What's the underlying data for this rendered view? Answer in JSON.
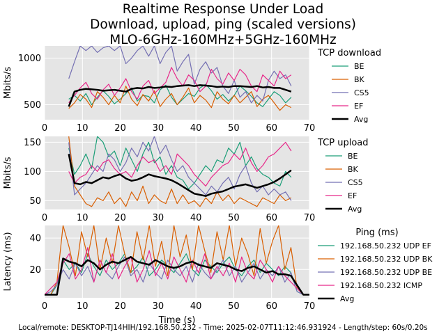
{
  "figure": {
    "title_lines": [
      "Realtime Response Under Load",
      "Download, upload, ping (scaled versions)",
      "MLO-6GHz-160MHz+5GHz-160MHz"
    ],
    "footer": "Local/remote: DESKTOP-TJ14HIH/192.168.50.232 - Time: 2025-02-07T11:12:46.931924 - Length/step: 60s/0.20s"
  },
  "colors": {
    "panel_bg": "#e5e5e5",
    "grid": "#ffffff",
    "BE": "#1b9e77",
    "BK": "#d95f02",
    "CS5": "#7570b3",
    "EF": "#e7298a",
    "Avg": "#000000"
  },
  "chart_data": [
    {
      "type": "line",
      "legend_title": "TCP download",
      "legend_position": "right",
      "grid": true,
      "xlabel": "",
      "ylabel": "Mbits/s",
      "xlim": [
        0,
        70
      ],
      "ylim": [
        340,
        1130
      ],
      "xticks": [
        0,
        10,
        20,
        30,
        40,
        50,
        60,
        70
      ],
      "yticks": [
        500,
        1000
      ],
      "x_start": 6.4,
      "x_end": 65.2,
      "series": [
        {
          "name": "BE",
          "color": "#1b9e77",
          "values": [
            560,
            600,
            540,
            620,
            500,
            580,
            650,
            590,
            510,
            560,
            620,
            680,
            540,
            600,
            590,
            520,
            660,
            710,
            580,
            500,
            560,
            620,
            590,
            680,
            720,
            650,
            560,
            610,
            540,
            600,
            700,
            650,
            590,
            520,
            480,
            560,
            640,
            600,
            520,
            580
          ]
        },
        {
          "name": "BK",
          "color": "#d95f02",
          "values": [
            460,
            520,
            610,
            560,
            470,
            640,
            580,
            500,
            600,
            520,
            700,
            560,
            490,
            610,
            540,
            650,
            480,
            560,
            620,
            500,
            580,
            680,
            520,
            600,
            550,
            470,
            640,
            560,
            510,
            600,
            520,
            580,
            640,
            480,
            560,
            600,
            520,
            440,
            500,
            470
          ]
        },
        {
          "name": "CS5",
          "color": "#7570b3",
          "values": [
            780,
            960,
            1130,
            1080,
            1130,
            1060,
            1110,
            1130,
            1080,
            1130,
            940,
            1000,
            1080,
            1130,
            1020,
            1130,
            940,
            1060,
            1130,
            860,
            960,
            1040,
            720,
            880,
            960,
            840,
            900,
            700,
            620,
            760,
            580,
            640,
            520,
            600,
            540,
            760,
            860,
            780,
            820,
            700
          ]
        },
        {
          "name": "EF",
          "color": "#e7298a",
          "values": [
            520,
            600,
            680,
            740,
            620,
            560,
            660,
            720,
            600,
            680,
            780,
            640,
            560,
            700,
            760,
            620,
            680,
            740,
            900,
            780,
            700,
            820,
            760,
            640,
            700,
            880,
            780,
            720,
            840,
            760,
            880,
            820,
            700,
            640,
            820,
            760,
            700,
            860,
            780,
            820
          ]
        },
        {
          "name": "Avg",
          "color": "#000000",
          "values": [
            480,
            640,
            660,
            670,
            665,
            660,
            650,
            655,
            660,
            650,
            640,
            670,
            680,
            675,
            690,
            680,
            685,
            695,
            690,
            700,
            705,
            710,
            700,
            710,
            705,
            700,
            690,
            695,
            690,
            700,
            700,
            695,
            690,
            700,
            685,
            690,
            680,
            680,
            660,
            640
          ]
        }
      ]
    },
    {
      "type": "line",
      "legend_title": "TCP upload",
      "legend_position": "right",
      "grid": true,
      "xlabel": "",
      "ylabel": "Mbits/s",
      "xlim": [
        0,
        70
      ],
      "ylim": [
        35,
        160
      ],
      "xticks": [
        0,
        10,
        20,
        30,
        40,
        50,
        60,
        70
      ],
      "yticks": [
        50,
        100,
        150
      ],
      "x_start": 6.4,
      "x_end": 65.2,
      "series": [
        {
          "name": "BE",
          "color": "#1b9e77",
          "values": [
            140,
            95,
            110,
            130,
            105,
            160,
            150,
            125,
            135,
            110,
            140,
            120,
            100,
            130,
            150,
            115,
            125,
            95,
            110,
            90,
            85,
            70,
            80,
            95,
            110,
            100,
            120,
            115,
            140,
            130,
            150,
            110,
            125,
            105,
            95,
            90,
            80,
            75,
            100,
            90
          ]
        },
        {
          "name": "BK",
          "color": "#d95f02",
          "values": [
            160,
            75,
            60,
            45,
            40,
            55,
            50,
            65,
            45,
            55,
            40,
            65,
            50,
            75,
            45,
            60,
            50,
            45,
            70,
            45,
            60,
            45,
            50,
            40,
            55,
            45,
            65,
            50,
            60,
            45,
            55,
            50,
            45,
            40,
            55,
            50,
            45,
            60,
            50,
            55
          ]
        },
        {
          "name": "CS5",
          "color": "#7570b3",
          "values": [
            150,
            60,
            70,
            80,
            95,
            110,
            100,
            130,
            120,
            100,
            115,
            140,
            125,
            150,
            135,
            160,
            130,
            145,
            120,
            100,
            110,
            90,
            80,
            70,
            60,
            75,
            65,
            80,
            90,
            70,
            95,
            110,
            80,
            65,
            75,
            60,
            70,
            60,
            65,
            50
          ]
        },
        {
          "name": "EF",
          "color": "#e7298a",
          "values": [
            100,
            80,
            90,
            95,
            110,
            100,
            115,
            120,
            105,
            95,
            100,
            90,
            110,
            125,
            115,
            120,
            100,
            110,
            95,
            130,
            120,
            110,
            95,
            85,
            75,
            90,
            100,
            110,
            115,
            130,
            120,
            140,
            115,
            100,
            110,
            125,
            130,
            140,
            150,
            135
          ]
        },
        {
          "name": "Avg",
          "color": "#000000",
          "values": [
            130,
            80,
            78,
            82,
            80,
            85,
            90,
            88,
            92,
            95,
            88,
            84,
            86,
            90,
            95,
            92,
            90,
            88,
            85,
            80,
            74,
            68,
            62,
            60,
            58,
            62,
            64,
            66,
            70,
            74,
            76,
            78,
            75,
            72,
            75,
            78,
            82,
            88,
            95,
            102
          ]
        }
      ]
    },
    {
      "type": "line",
      "legend_title": "Ping (ms)",
      "legend_position": "right",
      "grid": true,
      "xlabel": "Time (s)",
      "ylabel": "Latency (ms)",
      "xlim": [
        0,
        70
      ],
      "ylim": [
        2,
        48
      ],
      "xticks": [
        0,
        10,
        20,
        30,
        40,
        50,
        60,
        70
      ],
      "yticks": [
        20,
        40
      ],
      "x_start": 0,
      "x_end": 70,
      "series": [
        {
          "name": "192.168.50.232 UDP EF",
          "color": "#1b9e77",
          "values": [
            4,
            4,
            10,
            26,
            20,
            24,
            18,
            30,
            22,
            16,
            26,
            20,
            24,
            30,
            18,
            22,
            28,
            16,
            20,
            26,
            22,
            18,
            24,
            30,
            20,
            16,
            26,
            22,
            18,
            24,
            28,
            20,
            16,
            22,
            26,
            18,
            24,
            20,
            16,
            22,
            18,
            6,
            4,
            4
          ]
        },
        {
          "name": "192.168.50.232 UDP BK",
          "color": "#d95f02",
          "values": [
            4,
            4,
            12,
            48,
            34,
            16,
            44,
            28,
            48,
            20,
            40,
            24,
            48,
            30,
            18,
            44,
            26,
            48,
            22,
            38,
            16,
            48,
            28,
            42,
            20,
            48,
            32,
            18,
            44,
            26,
            48,
            22,
            40,
            30,
            16,
            46,
            24,
            38,
            48,
            20,
            34,
            8,
            4,
            4
          ]
        },
        {
          "name": "192.168.50.232 UDP BE",
          "color": "#7570b3",
          "values": [
            4,
            6,
            10,
            20,
            14,
            24,
            16,
            22,
            12,
            26,
            18,
            14,
            22,
            28,
            16,
            20,
            12,
            24,
            18,
            14,
            26,
            20,
            16,
            22,
            12,
            24,
            18,
            14,
            20,
            26,
            16,
            22,
            12,
            18,
            24,
            14,
            20,
            16,
            22,
            12,
            18,
            6,
            4,
            4
          ]
        },
        {
          "name": "192.168.50.232 ICMP",
          "color": "#e7298a",
          "values": [
            4,
            8,
            12,
            24,
            30,
            14,
            20,
            34,
            12,
            26,
            18,
            30,
            14,
            22,
            28,
            12,
            20,
            32,
            16,
            24,
            14,
            28,
            20,
            12,
            26,
            18,
            30,
            14,
            22,
            16,
            24,
            12,
            28,
            18,
            14,
            26,
            20,
            12,
            22,
            16,
            12,
            8,
            4,
            4
          ]
        },
        {
          "name": "Avg",
          "color": "#000000",
          "values": [
            4,
            4,
            4,
            27,
            25,
            24,
            22,
            26,
            24,
            20,
            23,
            25,
            24,
            26,
            28,
            25,
            24,
            23,
            26,
            24,
            22,
            21,
            22,
            24,
            25,
            23,
            22,
            21,
            24,
            23,
            22,
            20,
            19,
            21,
            22,
            20,
            18,
            19,
            17,
            17,
            16,
            10,
            4,
            4
          ]
        }
      ]
    }
  ]
}
